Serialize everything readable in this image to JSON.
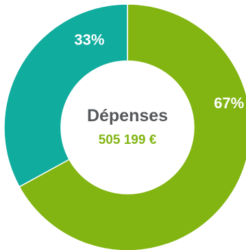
{
  "chart_data": {
    "type": "pie",
    "variant": "donut",
    "center_title": "Dépenses",
    "center_value": "505 199 €",
    "slices": [
      {
        "value": 67,
        "label": "67%",
        "color": "#82b512"
      },
      {
        "value": 33,
        "label": "33%",
        "color": "#10ac9e"
      }
    ],
    "legend": "none"
  },
  "colors": {
    "center_title": "#55585b",
    "center_value": "#82b512",
    "label_text": "#ffffff"
  }
}
